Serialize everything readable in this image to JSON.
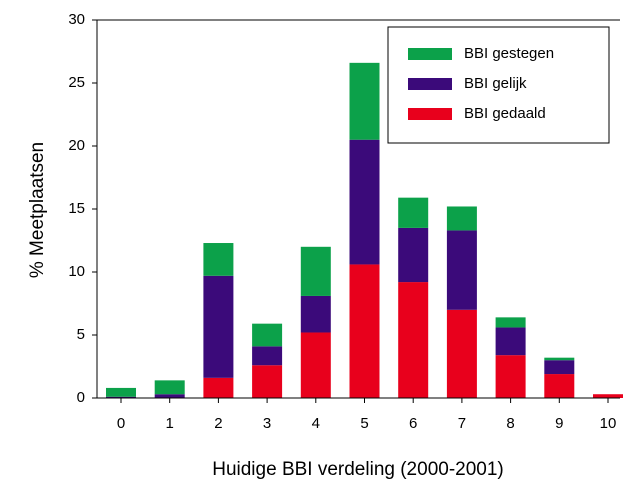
{
  "chart_data": {
    "type": "stacked_bar",
    "xlabel": "Huidige BBI verdeling (2000-2001)",
    "ylabel": "% Meetplaatsen",
    "categories": [
      "0",
      "1",
      "2",
      "3",
      "4",
      "5",
      "6",
      "7",
      "8",
      "9",
      "10"
    ],
    "series": [
      {
        "name": "BBI gedaald",
        "color": "#e8001c",
        "values": [
          0,
          0,
          1.6,
          2.6,
          5.2,
          10.6,
          9.2,
          7.0,
          3.4,
          1.9,
          0.3
        ]
      },
      {
        "name": "BBI gelijk",
        "color": "#3b0a7a",
        "values": [
          0.1,
          0.3,
          8.1,
          1.5,
          2.9,
          9.9,
          4.3,
          6.3,
          2.2,
          1.1,
          0
        ]
      },
      {
        "name": "BBI gestegen",
        "color": "#0ca14a",
        "values": [
          0.7,
          1.1,
          2.6,
          1.8,
          3.9,
          6.1,
          2.4,
          1.9,
          0.8,
          0.2,
          0
        ]
      }
    ],
    "ylim": [
      0,
      30
    ],
    "yticks": [
      0,
      5,
      10,
      15,
      20,
      25,
      30
    ],
    "legend": "upper right"
  }
}
